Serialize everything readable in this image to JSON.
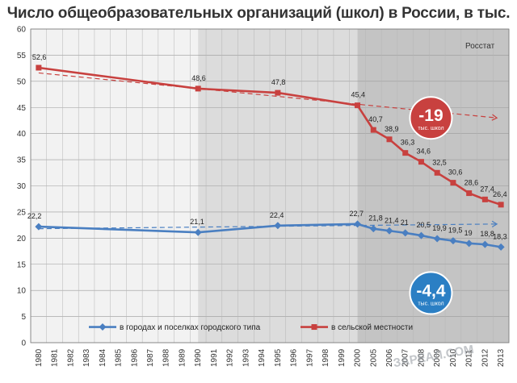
{
  "title": "Число общеобразовательных организаций (школ) в России, в тыс.",
  "source": "Росстат",
  "watermark": "ЗАРЕАЛ.COM",
  "chart_data": {
    "type": "line",
    "categories": [
      "1980",
      "1981",
      "1982",
      "1983",
      "1984",
      "1985",
      "1986",
      "1987",
      "1988",
      "1989",
      "1990",
      "1991",
      "1992",
      "1993",
      "1994",
      "1995",
      "1996",
      "1997",
      "1998",
      "1999",
      "2000",
      "2005",
      "2006",
      "2007",
      "2008",
      "2009",
      "2010",
      "2011",
      "2012",
      "2013"
    ],
    "ylim": [
      0,
      60
    ],
    "yticks": [
      0,
      5,
      10,
      15,
      20,
      25,
      30,
      35,
      40,
      45,
      50,
      55,
      60
    ],
    "grid": true,
    "legend_position": "bottom",
    "series": [
      {
        "name": "в городах и поселках городского типа",
        "color": "#4a7fc1",
        "marker": "diamond",
        "points": [
          {
            "x": "1980",
            "y": 22.2,
            "label": "22,2"
          },
          {
            "x": "1990",
            "y": 21.1,
            "label": "21,1"
          },
          {
            "x": "1995",
            "y": 22.4,
            "label": "22,4"
          },
          {
            "x": "2000",
            "y": 22.7,
            "label": "22,7"
          },
          {
            "x": "2005",
            "y": 21.8,
            "label": "21,8"
          },
          {
            "x": "2006",
            "y": 21.4,
            "label": "21,4"
          },
          {
            "x": "2007",
            "y": 21.0,
            "label": "21"
          },
          {
            "x": "2008",
            "y": 20.5,
            "label": "20,5"
          },
          {
            "x": "2009",
            "y": 19.9,
            "label": "19,9"
          },
          {
            "x": "2010",
            "y": 19.5,
            "label": "19,5"
          },
          {
            "x": "2011",
            "y": 19.0,
            "label": "19"
          },
          {
            "x": "2012",
            "y": 18.8,
            "label": "18,8"
          },
          {
            "x": "2013",
            "y": 18.3,
            "label": "18,3"
          }
        ]
      },
      {
        "name": "в сельской местности",
        "color": "#c8413f",
        "marker": "square",
        "points": [
          {
            "x": "1980",
            "y": 52.6,
            "label": "52,6"
          },
          {
            "x": "1990",
            "y": 48.6,
            "label": "48,6"
          },
          {
            "x": "1995",
            "y": 47.8,
            "label": "47,8"
          },
          {
            "x": "2000",
            "y": 45.4,
            "label": "45,4"
          },
          {
            "x": "2005",
            "y": 40.7,
            "label": "40,7"
          },
          {
            "x": "2006",
            "y": 38.9,
            "label": "38,9"
          },
          {
            "x": "2007",
            "y": 36.3,
            "label": "36,3"
          },
          {
            "x": "2008",
            "y": 34.6,
            "label": "34,6"
          },
          {
            "x": "2009",
            "y": 32.5,
            "label": "32,5"
          },
          {
            "x": "2010",
            "y": 30.6,
            "label": "30,6"
          },
          {
            "x": "2011",
            "y": 28.6,
            "label": "28,6"
          },
          {
            "x": "2012",
            "y": 27.4,
            "label": "27,4"
          },
          {
            "x": "2013",
            "y": 26.4,
            "label": "26,4"
          }
        ]
      }
    ],
    "trendlines": [
      {
        "series": "в сельской местности",
        "from": {
          "x": "1980",
          "y": 51.6
        },
        "to": {
          "x": "2013",
          "y": 43.0
        },
        "color": "#c8413f"
      },
      {
        "series": "в городах и поселках городского типа",
        "from": {
          "x": "1980",
          "y": 21.8
        },
        "to": {
          "x": "2013",
          "y": 22.7
        },
        "color": "#4a7fc1"
      }
    ],
    "shaded_bands": [
      {
        "from": "1980",
        "to": "1990",
        "color": "#f2f2f2"
      },
      {
        "from": "1990",
        "to": "2000",
        "color": "#dcdcdc"
      },
      {
        "from": "2000",
        "to": "2013",
        "color": "#c4c4c4"
      }
    ],
    "badges": [
      {
        "value": "-19",
        "unit": "тыс. школ",
        "color": "#c8413f",
        "near": {
          "x": "2008",
          "y": 43
        }
      },
      {
        "value": "-4,4",
        "unit": "тыс. школ",
        "color": "#2b7fc4",
        "near": {
          "x": "2008",
          "y": 9.5
        }
      }
    ]
  }
}
